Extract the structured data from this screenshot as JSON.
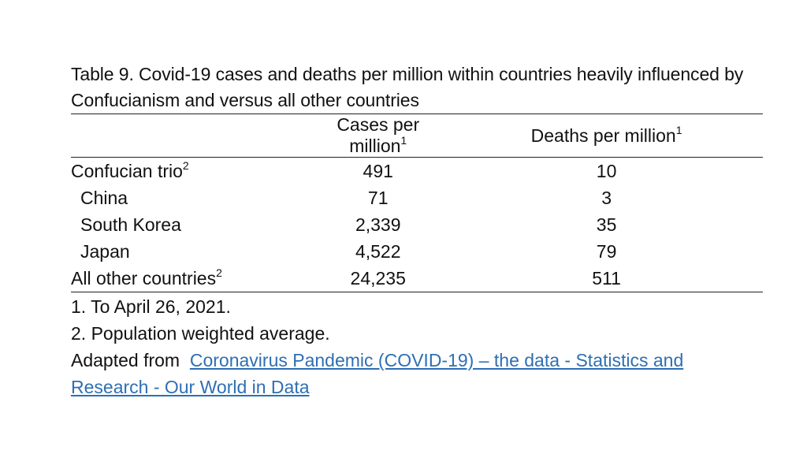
{
  "title": "Table 9. Covid-19 cases and deaths per million within countries heavily influenced by Confucianism and versus all other countries",
  "columns": {
    "cases": "Cases per million",
    "cases_sup": "1",
    "deaths": "Deaths per million",
    "deaths_sup": "1"
  },
  "rows": [
    {
      "label": "Confucian trio",
      "sup": "2",
      "cases": "491",
      "deaths": "10"
    },
    {
      "label": "China",
      "sup": "",
      "cases": "71",
      "deaths": "3"
    },
    {
      "label": "South Korea",
      "sup": "",
      "cases": "2,339",
      "deaths": "35"
    },
    {
      "label": "Japan",
      "sup": "",
      "cases": "4,522",
      "deaths": "79"
    },
    {
      "label": "All other countries",
      "sup": "2",
      "cases": "24,235",
      "deaths": "511"
    }
  ],
  "notes": {
    "note1": "1. To April 26, 2021.",
    "note2": "2. Population weighted average.",
    "adapted_prefix": "Adapted from",
    "link_text": "Coronavirus Pandemic (COVID-19) – the data - Statistics and Research - Our World in Data"
  }
}
